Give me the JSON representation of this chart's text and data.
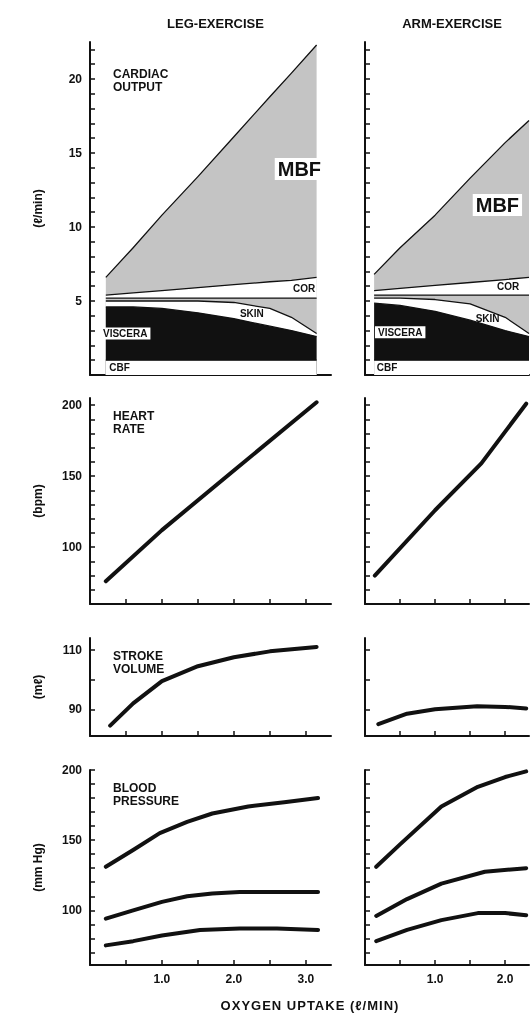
{
  "chart_data": [
    {
      "type": "area",
      "title": "LEG-EXERCISE",
      "subtitle": "CARDIAC OUTPUT",
      "ylabel": "(ℓ/min)",
      "stacked": true,
      "marker": "none",
      "tick_labels": "y",
      "x": [
        0.22,
        0.6,
        1.0,
        1.5,
        2.0,
        2.5,
        2.8,
        3.15
      ],
      "series": [
        {
          "name": "CBF",
          "color": "#ffffff",
          "values": [
            1.0,
            1.0,
            1.0,
            1.0,
            1.0,
            1.0,
            1.0,
            1.0
          ]
        },
        {
          "name": "VISCERA",
          "color": "#111111",
          "values": [
            3.6,
            3.6,
            3.5,
            3.2,
            2.8,
            2.3,
            2.0,
            1.6
          ]
        },
        {
          "name": "SKIN",
          "color": "#ffffff",
          "values": [
            0.4,
            0.4,
            0.5,
            0.8,
            1.1,
            1.2,
            0.9,
            0.2
          ]
        },
        {
          "color": "#c4c4c4",
          "values": [
            0.2,
            0.2,
            0.2,
            0.2,
            0.3,
            0.7,
            1.3,
            2.4
          ]
        },
        {
          "name": "COR",
          "color": "#ffffff",
          "values": [
            0.2,
            0.35,
            0.5,
            0.7,
            0.9,
            1.1,
            1.2,
            1.4
          ]
        },
        {
          "name": "MBF",
          "color": "#c4c4c4",
          "values": [
            1.2,
            3.05,
            5.1,
            7.5,
            10.0,
            12.5,
            14.0,
            15.7
          ]
        }
      ],
      "xlim": [
        0,
        3.35
      ],
      "ylim": [
        0,
        22.5
      ],
      "xticks": [
        {
          "value": 0.5,
          "label": null
        },
        {
          "value": 1,
          "label": "1.0"
        },
        {
          "value": 1.5,
          "label": null
        },
        {
          "value": 2,
          "label": "2.0"
        },
        {
          "value": 2.5,
          "label": null
        },
        {
          "value": 3,
          "label": "3.0"
        }
      ],
      "yticks": [
        {
          "value": 1,
          "label": null
        },
        {
          "value": 2,
          "label": null
        },
        {
          "value": 3,
          "label": null
        },
        {
          "value": 4,
          "label": null
        },
        5,
        {
          "value": 6,
          "label": null
        },
        {
          "value": 7,
          "label": null
        },
        {
          "value": 8,
          "label": null
        },
        {
          "value": 9,
          "label": null
        },
        10,
        {
          "value": 11,
          "label": null
        },
        {
          "value": 12,
          "label": null
        },
        {
          "value": 13,
          "label": null
        },
        {
          "value": 14,
          "label": null
        },
        15,
        {
          "value": 16,
          "label": null
        },
        {
          "value": 17,
          "label": null
        },
        {
          "value": 18,
          "label": null
        },
        {
          "value": 19,
          "label": null
        },
        20,
        {
          "value": 21,
          "label": null
        },
        {
          "value": 22,
          "label": null
        }
      ]
    },
    {
      "type": "area",
      "title": "ARM-EXERCISE",
      "stacked": true,
      "marker": "none",
      "tick_labels": false,
      "x": [
        0.13,
        0.5,
        1.0,
        1.5,
        2.0,
        2.34
      ],
      "series": [
        {
          "name": "CBF",
          "color": "#ffffff",
          "values": [
            1.0,
            1.0,
            1.0,
            1.0,
            1.0,
            1.0
          ]
        },
        {
          "name": "VISCERA",
          "color": "#111111",
          "values": [
            3.85,
            3.7,
            3.3,
            2.7,
            2.0,
            1.6
          ]
        },
        {
          "name": "SKIN",
          "color": "#ffffff",
          "values": [
            0.35,
            0.5,
            0.8,
            1.1,
            0.9,
            0.2
          ]
        },
        {
          "color": "#c4c4c4",
          "values": [
            0.2,
            0.2,
            0.3,
            0.6,
            1.5,
            2.6
          ]
        },
        {
          "name": "COR",
          "color": "#ffffff",
          "values": [
            0.3,
            0.45,
            0.65,
            0.85,
            1.05,
            1.2
          ]
        },
        {
          "name": "MBF",
          "color": "#c4c4c4",
          "values": [
            1.1,
            2.75,
            4.75,
            7.05,
            9.25,
            10.6
          ]
        }
      ],
      "xlim": [
        0,
        2.34
      ],
      "ylim": [
        0,
        22.5
      ],
      "xticks": [
        {
          "value": 0.5,
          "label": null
        },
        {
          "value": 1,
          "label": "1.0"
        },
        {
          "value": 1.5,
          "label": null
        },
        {
          "value": 2,
          "label": "2.0"
        }
      ],
      "yticks": [
        1,
        2,
        3,
        4,
        5,
        6,
        7,
        8,
        9,
        10,
        11,
        12,
        13,
        14,
        15,
        16,
        17,
        18,
        19,
        20,
        21,
        22
      ]
    },
    {
      "type": "line",
      "title": "HEART RATE",
      "ylabel": "(bpm)",
      "marker": "none",
      "tick_labels": "y",
      "color": "#111111",
      "x": [
        0.22,
        1.0,
        2.0,
        3.15
      ],
      "values": [
        76,
        112,
        154,
        202
      ],
      "xlim": [
        0,
        3.35
      ],
      "ylim": [
        60,
        205
      ],
      "xticks": [
        {
          "value": 0.5,
          "label": null
        },
        {
          "value": 1,
          "label": "1.0"
        },
        {
          "value": 1.5,
          "label": null
        },
        {
          "value": 2,
          "label": "2.0"
        },
        {
          "value": 2.5,
          "label": null
        },
        {
          "value": 3,
          "label": "3.0"
        }
      ],
      "yticks": [
        {
          "value": 70,
          "label": null
        },
        {
          "value": 80,
          "label": null
        },
        {
          "value": 90,
          "label": null
        },
        100,
        {
          "value": 110,
          "label": null
        },
        {
          "value": 120,
          "label": null
        },
        {
          "value": 130,
          "label": null
        },
        {
          "value": 140,
          "label": null
        },
        150,
        {
          "value": 160,
          "label": null
        },
        {
          "value": 170,
          "label": null
        },
        {
          "value": 180,
          "label": null
        },
        {
          "value": 190,
          "label": null
        },
        200
      ]
    },
    {
      "type": "line",
      "marker": "none",
      "tick_labels": false,
      "color": "#111111",
      "x": [
        0.14,
        1.0,
        1.66,
        2.3
      ],
      "values": [
        80,
        126,
        159,
        201
      ],
      "xlim": [
        0,
        2.34
      ],
      "ylim": [
        60,
        205
      ],
      "xticks": [
        {
          "value": 0.5,
          "label": null
        },
        {
          "value": 1,
          "label": "1.0"
        },
        {
          "value": 1.5,
          "label": null
        },
        {
          "value": 2,
          "label": "2.0"
        }
      ],
      "yticks": [
        70,
        80,
        90,
        100,
        110,
        120,
        130,
        140,
        150,
        160,
        170,
        180,
        190,
        200
      ]
    },
    {
      "type": "line",
      "title": "STROKE VOLUME",
      "ylabel": "(mℓ)",
      "marker": "none",
      "tick_labels": "y",
      "color": "#111111",
      "x": [
        0.28,
        0.6,
        1.0,
        1.5,
        2.0,
        2.5,
        3.15
      ],
      "values": [
        84.5,
        92,
        99.5,
        104.5,
        107.5,
        109.5,
        111
      ],
      "xlim": [
        0,
        3.35
      ],
      "ylim": [
        81,
        114
      ],
      "xticks": [
        {
          "value": 0.5,
          "label": null
        },
        {
          "value": 1,
          "label": "1.0"
        },
        {
          "value": 1.5,
          "label": null
        },
        {
          "value": 2,
          "label": "2.0"
        },
        {
          "value": 2.5,
          "label": null
        },
        {
          "value": 3,
          "label": "3.0"
        }
      ],
      "yticks": [
        90,
        {
          "value": 100,
          "label": null
        },
        110
      ]
    },
    {
      "type": "line",
      "marker": "none",
      "tick_labels": false,
      "color": "#111111",
      "x": [
        0.19,
        0.6,
        1.0,
        1.6,
        2.0,
        2.3
      ],
      "values": [
        85,
        88.5,
        90,
        91,
        90.8,
        90.3
      ],
      "xlim": [
        0,
        2.34
      ],
      "ylim": [
        81,
        114
      ],
      "xticks": [
        {
          "value": 0.5,
          "label": null
        },
        {
          "value": 1,
          "label": "1.0"
        },
        {
          "value": 1.5,
          "label": null
        },
        {
          "value": 2,
          "label": "2.0"
        }
      ],
      "yticks": [
        90,
        100,
        110
      ]
    },
    {
      "type": "line",
      "title": "BLOOD PRESSURE",
      "ylabel": "(mm Hg)",
      "xlabel": "OXYGEN UPTAKE (ℓ/MIN)",
      "marker": "none",
      "series": [
        {
          "color": "#111111",
          "x": [
            0.22,
            0.6,
            0.97,
            1.35,
            1.7,
            2.2,
            2.7,
            3.17
          ],
          "values": [
            131,
            143,
            155,
            163,
            169,
            174,
            177,
            180
          ]
        },
        {
          "color": "#111111",
          "x": [
            0.22,
            0.6,
            1.0,
            1.35,
            1.7,
            2.08,
            2.6,
            3.17
          ],
          "values": [
            94,
            100,
            106,
            110,
            112,
            113,
            113,
            113
          ]
        },
        {
          "color": "#111111",
          "x": [
            0.22,
            0.6,
            1.0,
            1.53,
            2.08,
            2.6,
            3.17
          ],
          "values": [
            75,
            78,
            82,
            86,
            87,
            87,
            86
          ]
        }
      ],
      "xlim": [
        0,
        3.35
      ],
      "ylim": [
        61,
        200
      ],
      "xticks": [
        {
          "value": 0.5,
          "label": null
        },
        {
          "value": 1,
          "label": "1.0"
        },
        {
          "value": 1.5,
          "label": null
        },
        {
          "value": 2,
          "label": "2.0"
        },
        {
          "value": 2.5,
          "label": null
        },
        {
          "value": 3,
          "label": "3.0"
        }
      ],
      "yticks": [
        {
          "value": 70,
          "label": null
        },
        {
          "value": 80,
          "label": null
        },
        {
          "value": 90,
          "label": null
        },
        100,
        {
          "value": 110,
          "label": null
        },
        {
          "value": 120,
          "label": null
        },
        {
          "value": 130,
          "label": null
        },
        {
          "value": 140,
          "label": null
        },
        150,
        {
          "value": 160,
          "label": null
        },
        {
          "value": 170,
          "label": null
        },
        {
          "value": 180,
          "label": null
        },
        {
          "value": 190,
          "label": null
        },
        200
      ]
    },
    {
      "type": "line",
      "marker": "none",
      "tick_labels": "x",
      "series": [
        {
          "color": "#111111",
          "x": [
            0.16,
            0.5,
            1.09,
            1.61,
            2.0,
            2.3
          ],
          "values": [
            131,
            147,
            174,
            188,
            195,
            199
          ]
        },
        {
          "color": "#111111",
          "x": [
            0.16,
            0.6,
            1.09,
            1.71,
            2.3
          ],
          "values": [
            96,
            108,
            119,
            127.5,
            130
          ]
        },
        {
          "color": "#111111",
          "x": [
            0.16,
            0.6,
            1.09,
            1.61,
            2.0,
            2.3
          ],
          "values": [
            78,
            86,
            93,
            98,
            98,
            96.5
          ]
        }
      ],
      "xlim": [
        0,
        2.34
      ],
      "ylim": [
        61,
        200
      ],
      "xticks": [
        {
          "value": 0.5,
          "label": null
        },
        {
          "value": 1,
          "label": "1.0"
        },
        {
          "value": 1.5,
          "label": null
        },
        {
          "value": 2,
          "label": "2.0"
        }
      ],
      "yticks": [
        70,
        80,
        90,
        100,
        110,
        120,
        130,
        140,
        150,
        160,
        170,
        180,
        190,
        200
      ]
    }
  ]
}
